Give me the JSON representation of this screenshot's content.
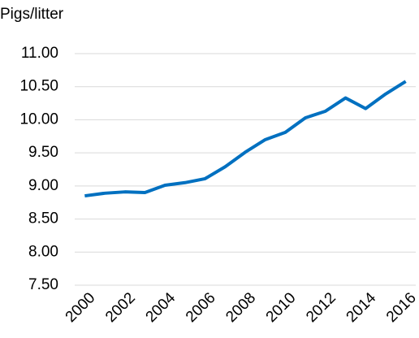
{
  "chart_data": {
    "type": "line",
    "ylabel": "Pigs/litter",
    "x": [
      2000,
      2001,
      2002,
      2003,
      2004,
      2005,
      2006,
      2007,
      2008,
      2009,
      2010,
      2011,
      2012,
      2013,
      2014,
      2015,
      2016
    ],
    "series": [
      {
        "name": "Pigs/litter",
        "color": "#0070c0",
        "values": [
          8.85,
          8.89,
          8.91,
          8.9,
          9.01,
          9.05,
          9.11,
          9.29,
          9.51,
          9.7,
          9.81,
          10.03,
          10.13,
          10.33,
          10.17,
          10.39,
          10.58
        ]
      }
    ],
    "xlim": [
      1999.5,
      2016.5
    ],
    "xticks": [
      2000,
      2002,
      2004,
      2006,
      2008,
      2010,
      2012,
      2014,
      2016
    ],
    "ylim": [
      7.5,
      11.0
    ],
    "yticks": [
      {
        "value": 7.5,
        "label": "7.50"
      },
      {
        "value": 8.0,
        "label": "8.00"
      },
      {
        "value": 8.5,
        "label": "8.50"
      },
      {
        "value": 9.0,
        "label": "9.00"
      },
      {
        "value": 9.5,
        "label": "9.50"
      },
      {
        "value": 10.0,
        "label": "10.00"
      },
      {
        "value": 10.5,
        "label": "10.50"
      },
      {
        "value": 11.0,
        "label": "11.00"
      }
    ],
    "grid": true
  }
}
